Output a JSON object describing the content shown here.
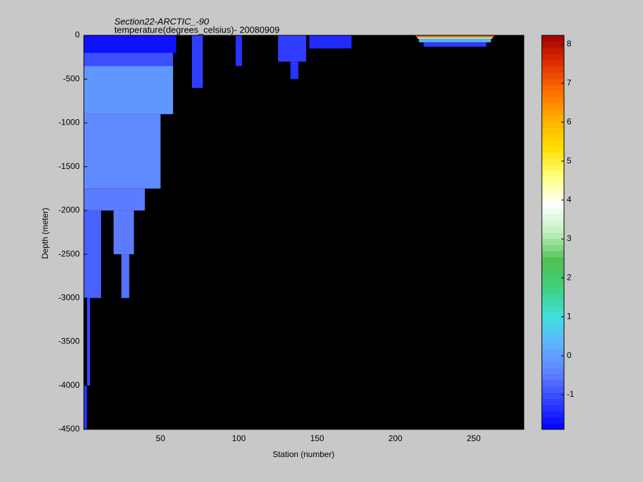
{
  "chart_data": {
    "type": "heatmap",
    "title": "Section22-ARCTIC_-90",
    "subtitle": "temperature(degrees_celsius)- 20080909",
    "x_label": "Station (number)",
    "y_label": "Depth (meter)",
    "xlim": [
      1,
      282
    ],
    "xticks": [
      50,
      100,
      150,
      200,
      250
    ],
    "ylim": [
      -4500,
      0
    ],
    "yticks": [
      0,
      -500,
      -1000,
      -1500,
      -2000,
      -2500,
      -3000,
      -3500,
      -4000,
      -4500
    ],
    "background": "#000000",
    "clim": [
      -1.89,
      8.23
    ],
    "cticks": [
      -1,
      0,
      1,
      2,
      3,
      4,
      5,
      6,
      7,
      8
    ],
    "colormap": [
      "#0000ff",
      "#3040ff",
      "#6080ff",
      "#60b0ff",
      "#40e0e0",
      "#40d080",
      "#50c050",
      "#c0f0c0",
      "#ffffff",
      "#ffff80",
      "#ffe000",
      "#ffb000",
      "#ff7000",
      "#e03000",
      "#a00000"
    ],
    "cells": [
      {
        "x": [
          1,
          60
        ],
        "depth": [
          0,
          -200
        ],
        "value": -1.7
      },
      {
        "x": [
          1,
          58
        ],
        "depth": [
          -200,
          -350
        ],
        "value": -1.0
      },
      {
        "x": [
          1,
          58
        ],
        "depth": [
          -350,
          -900
        ],
        "value": -0.1
      },
      {
        "x": [
          1,
          50
        ],
        "depth": [
          -900,
          -1750
        ],
        "value": -0.3
      },
      {
        "x": [
          1,
          40
        ],
        "depth": [
          -1750,
          -2000
        ],
        "value": -0.5
      },
      {
        "x": [
          1,
          12
        ],
        "depth": [
          -2000,
          -3000
        ],
        "value": -0.8
      },
      {
        "x": [
          20,
          33
        ],
        "depth": [
          -2000,
          -2500
        ],
        "value": -0.5
      },
      {
        "x": [
          25,
          30
        ],
        "depth": [
          -2500,
          -3000
        ],
        "value": -0.6
      },
      {
        "x": [
          3,
          5
        ],
        "depth": [
          -3000,
          -4000
        ],
        "value": -1.1
      },
      {
        "x": [
          1,
          3
        ],
        "depth": [
          -4000,
          -4500
        ],
        "value": -1.3
      },
      {
        "x": [
          70,
          77
        ],
        "depth": [
          0,
          -600
        ],
        "value": -1.2
      },
      {
        "x": [
          98,
          102
        ],
        "depth": [
          0,
          -350
        ],
        "value": -1.3
      },
      {
        "x": [
          125,
          143
        ],
        "depth": [
          0,
          -300
        ],
        "value": -1.2
      },
      {
        "x": [
          133,
          138
        ],
        "depth": [
          -300,
          -500
        ],
        "value": -1.3
      },
      {
        "x": [
          145,
          172
        ],
        "depth": [
          0,
          -150
        ],
        "value": -1.4
      },
      {
        "x": [
          213,
          263
        ],
        "depth": [
          0,
          -20
        ],
        "value": 7
      },
      {
        "x": [
          214,
          262
        ],
        "depth": [
          -20,
          -40
        ],
        "value": 3
      },
      {
        "x": [
          215,
          261
        ],
        "depth": [
          -40,
          -80
        ],
        "value": 0.3
      },
      {
        "x": [
          218,
          258
        ],
        "depth": [
          -80,
          -130
        ],
        "value": -1.2
      }
    ]
  }
}
